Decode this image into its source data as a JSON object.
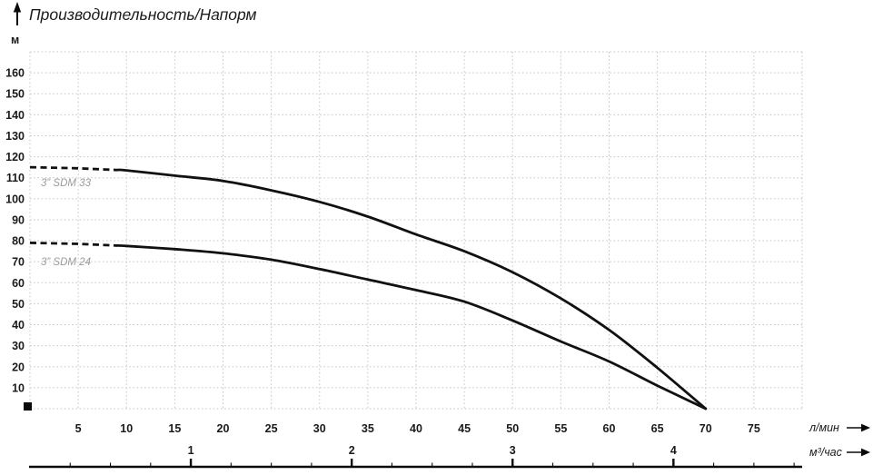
{
  "chart_data": {
    "type": "line",
    "title": "Производительность/Напорм",
    "y_axis": {
      "unit": "м",
      "min": 0,
      "max": 170,
      "tick_step": 10,
      "tick_labels": [
        10,
        20,
        30,
        40,
        50,
        60,
        70,
        80,
        90,
        100,
        110,
        120,
        130,
        140,
        150,
        160
      ]
    },
    "x_axis_primary": {
      "label": "л/мин",
      "min": 0,
      "max": 80,
      "grid_step": 5,
      "tick_labels": [
        5,
        10,
        15,
        20,
        25,
        30,
        35,
        40,
        45,
        50,
        55,
        60,
        65,
        70,
        75
      ]
    },
    "x_axis_secondary": {
      "label": "м³/час",
      "tick_labels": [
        1,
        2,
        3,
        4
      ],
      "lmin_per_unit": 16.6667,
      "minor_tick_step": 0.25
    },
    "series": [
      {
        "name": "3” SDM 33",
        "dashed_until_lmin": 9,
        "points_lmin_head": [
          [
            0,
            115
          ],
          [
            5,
            114.5
          ],
          [
            10,
            113.5
          ],
          [
            15,
            111
          ],
          [
            20,
            108.5
          ],
          [
            25,
            104
          ],
          [
            30,
            98.5
          ],
          [
            35,
            91.5
          ],
          [
            40,
            83
          ],
          [
            45,
            75
          ],
          [
            50,
            65
          ],
          [
            55,
            52.5
          ],
          [
            60,
            37.5
          ],
          [
            65,
            19.5
          ],
          [
            70,
            0
          ]
        ]
      },
      {
        "name": "3” SDM 24",
        "dashed_until_lmin": 9,
        "points_lmin_head": [
          [
            0,
            79
          ],
          [
            5,
            78.5
          ],
          [
            10,
            77.5
          ],
          [
            15,
            76
          ],
          [
            20,
            74
          ],
          [
            25,
            71
          ],
          [
            30,
            66.5
          ],
          [
            35,
            61.5
          ],
          [
            40,
            56.5
          ],
          [
            45,
            51
          ],
          [
            50,
            42
          ],
          [
            55,
            32
          ],
          [
            60,
            22.5
          ],
          [
            65,
            11
          ],
          [
            70,
            0
          ]
        ]
      }
    ],
    "grid_color": "#c7c7c7",
    "curve_color": "#111111",
    "legend_position": "on-curve-left"
  }
}
